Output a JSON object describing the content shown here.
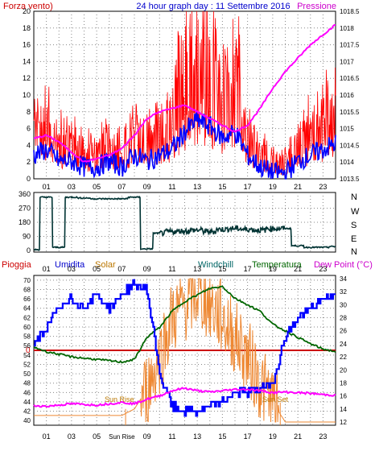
{
  "colors": {
    "wind": "#ff0000",
    "gust": "#0000ff",
    "pressure": "#ff00ff",
    "winddir": "#003333",
    "rain": "#cc0000",
    "humidity": "#0000ff",
    "solar": "#ee8833",
    "windchill": "#006600",
    "temperature": "#006600",
    "dewpoint": "#ff00ff",
    "grid": "#888888",
    "title": "#0000cc",
    "label_left": "#cc0000",
    "label_solar": "#bb7700",
    "label_windchill": "#006666",
    "label_temp": "#006600",
    "label_dew": "#cc00cc"
  },
  "top_chart": {
    "title": "24 hour graph day : 11 Settembre 2016",
    "left_label": "Forza vento)",
    "right_label": "Pressione",
    "y_left_ticks": [
      "0",
      "2",
      "4",
      "6",
      "8",
      "10",
      "12",
      "14",
      "16",
      "18",
      "20"
    ],
    "y_right_ticks": [
      "1013.5",
      "1014",
      "1014.5",
      "1015",
      "1015.5",
      "1016",
      "1016.5",
      "1017",
      "1017.5",
      "1018",
      "1018.5"
    ],
    "x_ticks": [
      "01",
      "03",
      "05",
      "07",
      "09",
      "11",
      "13",
      "15",
      "17",
      "19",
      "21",
      "23"
    ]
  },
  "dir_chart": {
    "y_ticks": [
      "360",
      "270",
      "180",
      "90",
      "0"
    ],
    "compass": [
      "N",
      "W",
      "S",
      "E",
      "N"
    ],
    "x_ticks": [
      "01",
      "03",
      "05",
      "07",
      "09",
      "11",
      "13",
      "15",
      "17",
      "19",
      "21",
      "23"
    ]
  },
  "bottom_chart": {
    "labels": {
      "rain": "Pioggia",
      "humidity": "Umidita",
      "solar": "Solar",
      "windchill": "Windchill",
      "temperature": "Temperatura",
      "dewpoint": "Dew Point (°C)"
    },
    "rain_value": "0",
    "y_left_ticks": [
      "40",
      "42",
      "44",
      "46",
      "48",
      "50",
      "52",
      "54",
      "56",
      "58",
      "60",
      "62",
      "64",
      "66",
      "68",
      "70"
    ],
    "y_right_ticks": [
      "12",
      "14",
      "16",
      "18",
      "20",
      "22",
      "24",
      "26",
      "28",
      "30",
      "32",
      "34"
    ],
    "x_ticks": [
      "01",
      "03",
      "05",
      "07",
      "09",
      "11",
      "13",
      "15",
      "17",
      "19",
      "21",
      "23"
    ],
    "sun_rise": "Sun Rise",
    "sun_set": "Sun Set",
    "sun_rise_axis": "Sun Rise"
  },
  "chart_data": [
    {
      "type": "line",
      "title": "24 hour graph day : 11 Settembre 2016",
      "x_hours": [
        0,
        1,
        2,
        3,
        4,
        5,
        6,
        7,
        8,
        9,
        10,
        11,
        12,
        13,
        14,
        15,
        16,
        17,
        18,
        19,
        20,
        21,
        22,
        23,
        24
      ],
      "series": [
        {
          "name": "Forza vento)",
          "axis": "left",
          "values": [
            4,
            5,
            3,
            3,
            2,
            2,
            3,
            2,
            4,
            3,
            4,
            5,
            8,
            10,
            9,
            7,
            8,
            4,
            2,
            1,
            1,
            3,
            4,
            5,
            6
          ]
        },
        {
          "name": "Pressione",
          "axis": "right",
          "values": [
            1014.7,
            1014.8,
            1014.6,
            1014.3,
            1014.0,
            1014.1,
            1014.2,
            1014.4,
            1014.8,
            1015.3,
            1015.5,
            1015.6,
            1015.7,
            1015.5,
            1015.3,
            1015.1,
            1014.9,
            1015.1,
            1015.6,
            1016.2,
            1016.7,
            1017.1,
            1017.5,
            1017.8,
            1018.1
          ]
        }
      ],
      "ylim_left": [
        0,
        20
      ],
      "ylim_right": [
        1013.5,
        1018.5
      ],
      "grid": true
    },
    {
      "type": "line",
      "x_hours": [
        0,
        1,
        2,
        3,
        4,
        5,
        6,
        7,
        8,
        9,
        10,
        11,
        12,
        13,
        14,
        15,
        16,
        17,
        18,
        19,
        20,
        21,
        22,
        23,
        24
      ],
      "series": [
        {
          "name": "Direzione vento",
          "values": [
            5,
            340,
            20,
            340,
            335,
            330,
            330,
            330,
            340,
            10,
            110,
            120,
            125,
            130,
            120,
            135,
            140,
            135,
            130,
            140,
            140,
            30,
            20,
            20,
            25
          ]
        }
      ],
      "ylim": [
        0,
        360
      ],
      "grid": true
    },
    {
      "type": "line",
      "x_hours": [
        0,
        1,
        2,
        3,
        4,
        5,
        6,
        7,
        8,
        9,
        10,
        11,
        12,
        13,
        14,
        15,
        16,
        17,
        18,
        19,
        20,
        21,
        22,
        23,
        24
      ],
      "series": [
        {
          "name": "Umidita",
          "axis": "left",
          "values": [
            56,
            60,
            64,
            66,
            64,
            67,
            64,
            67,
            69,
            68,
            50,
            43,
            42,
            42,
            43,
            44,
            46,
            46,
            47,
            48,
            58,
            62,
            64,
            66,
            67
          ]
        },
        {
          "name": "Solar",
          "axis": "right",
          "values": [
            13,
            13,
            13,
            13,
            13,
            13,
            13,
            13,
            14,
            17,
            22,
            28,
            30,
            32,
            30,
            28,
            25,
            22,
            18,
            15,
            12,
            12,
            12,
            12,
            12
          ]
        },
        {
          "name": "Temperatura",
          "axis": "right",
          "values": [
            23.5,
            22.8,
            22.4,
            22.0,
            21.8,
            21.6,
            21.4,
            21.2,
            21.6,
            25.0,
            26.5,
            29.0,
            30.5,
            31.5,
            32.5,
            32.8,
            31.0,
            30.0,
            29.0,
            27.0,
            26.0,
            25.0,
            24.0,
            23.2,
            22.8
          ]
        },
        {
          "name": "Dew Point (°C)",
          "axis": "right",
          "values": [
            14.5,
            14.4,
            14.6,
            14.8,
            14.7,
            14.6,
            14.8,
            15.0,
            14.8,
            15.5,
            16.0,
            16.8,
            17.2,
            16.8,
            16.6,
            16.8,
            17.0,
            17.0,
            16.8,
            16.5,
            16.6,
            16.5,
            16.4,
            16.2,
            16.1
          ]
        }
      ],
      "rain": 0,
      "ylim_left": [
        40,
        70
      ],
      "ylim_right": [
        12,
        34
      ],
      "sun_rise_hour": 7.3,
      "sun_set_hour": 19.6,
      "grid": true
    }
  ]
}
